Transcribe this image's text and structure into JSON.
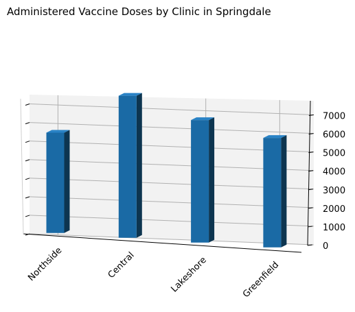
{
  "chart_data": {
    "type": "bar",
    "title": "Administered Vaccine Doses by Clinic in Springdale",
    "categories": [
      "Northside",
      "Central",
      "Lakeshore",
      "Greenfield"
    ],
    "values": [
      5400,
      7650,
      6600,
      5900
    ],
    "ylim": [
      0,
      7650
    ],
    "yticks": [
      0,
      1000,
      2000,
      3000,
      4000,
      5000,
      6000,
      7000
    ],
    "grid": true,
    "projection": "3d",
    "bar_color": "#1a6aa5"
  }
}
